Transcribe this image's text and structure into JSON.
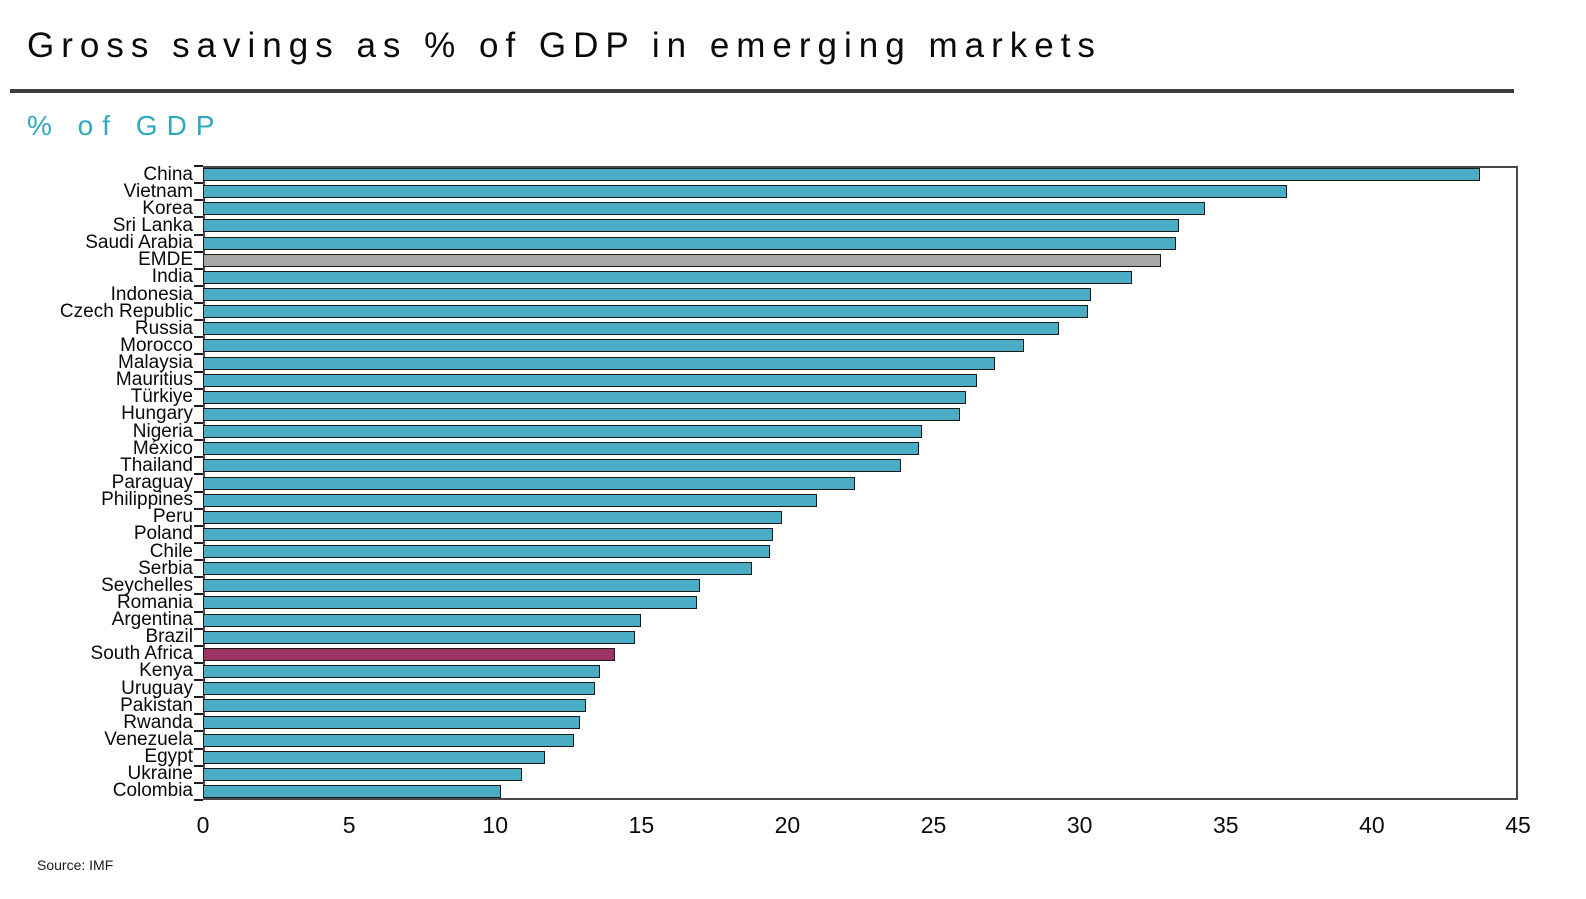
{
  "header": {
    "title": "Gross savings as % of GDP in emerging markets",
    "subtitle": "% of GDP",
    "source": "Source: IMF"
  },
  "colors": {
    "bar_teal": "#4BACC6",
    "bar_gray_emde": "#A8A8A8",
    "bar_maroon_south_africa": "#9E3365",
    "bar_border": "#1B1B1B",
    "subtitle_text": "#2EA9BE",
    "divider": "#3D3D3D",
    "plot_frame": "#4A4A4A"
  },
  "chart_data": {
    "type": "bar",
    "orientation": "horizontal",
    "title": "Gross savings as % of GDP in emerging markets",
    "ylabel": "% of GDP",
    "xlabel": "",
    "xlim": [
      0,
      45
    ],
    "xticks": [
      0,
      5,
      10,
      15,
      20,
      25,
      30,
      35,
      40,
      45
    ],
    "grid": false,
    "legend": "none",
    "categories": [
      "China",
      "Vietnam",
      "Korea",
      "Sri Lanka",
      "Saudi Arabia",
      "EMDE",
      "India",
      "Indonesia",
      "Czech Republic",
      "Russia",
      "Morocco",
      "Malaysia",
      "Mauritius",
      "Türkiye",
      "Hungary",
      "Nigeria",
      "México",
      "Thailand",
      "Paraguay",
      "Philippines",
      "Peru",
      "Poland",
      "Chile",
      "Serbia",
      "Seychelles",
      "Romania",
      "Argentina",
      "Brazil",
      "South Africa",
      "Kenya",
      "Uruguay",
      "Pakistan",
      "Rwanda",
      "Venezuela",
      "Egypt",
      "Ukraine",
      "Colombia"
    ],
    "values": [
      43.7,
      37.1,
      34.3,
      33.4,
      33.3,
      32.8,
      31.8,
      30.4,
      30.3,
      29.3,
      28.1,
      27.1,
      26.5,
      26.1,
      25.9,
      24.6,
      24.5,
      23.9,
      22.3,
      21.0,
      19.8,
      19.5,
      19.4,
      18.8,
      17.0,
      16.9,
      15.0,
      14.8,
      14.1,
      13.6,
      13.4,
      13.1,
      12.9,
      12.7,
      11.7,
      10.9,
      10.2
    ],
    "default_bar_color": "#4BACC6",
    "bar_colors_by_category": {
      "EMDE": "#A8A8A8",
      "South Africa": "#9E3365"
    },
    "source": "Source: IMF"
  }
}
